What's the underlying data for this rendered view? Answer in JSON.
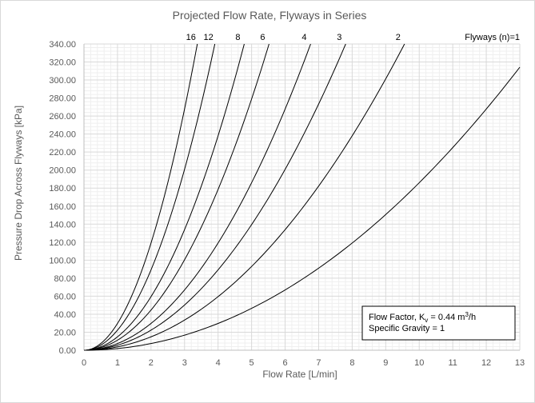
{
  "chart_data": {
    "type": "line",
    "title": "Projected Flow Rate, Flyways in Series",
    "xlabel": "Flow Rate [L/min]",
    "ylabel": "Pressure Drop Across Flyways [kPa]",
    "xlim": [
      0,
      13
    ],
    "ylim": [
      0,
      340
    ],
    "x_ticks": [
      "0",
      "1",
      "2",
      "3",
      "4",
      "5",
      "6",
      "7",
      "8",
      "9",
      "10",
      "11",
      "12",
      "13"
    ],
    "y_ticks": [
      "0.00",
      "20.00",
      "40.00",
      "60.00",
      "80.00",
      "100.00",
      "120.00",
      "140.00",
      "160.00",
      "180.00",
      "200.00",
      "220.00",
      "240.00",
      "260.00",
      "280.00",
      "300.00",
      "320.00",
      "340.00"
    ],
    "grid": true,
    "flow_factor_kv": 0.44,
    "specific_gravity": 1,
    "series": [
      {
        "name": "Flyways (n)=1",
        "n": 1
      },
      {
        "name": "2",
        "n": 2
      },
      {
        "name": "3",
        "n": 3
      },
      {
        "name": "4",
        "n": 4
      },
      {
        "name": "6",
        "n": 6
      },
      {
        "name": "8",
        "n": 8
      },
      {
        "name": "12",
        "n": 12
      },
      {
        "name": "16",
        "n": 16
      }
    ]
  },
  "info_box": {
    "line1_prefix": "Flow Factor, K",
    "line1_sub": "v",
    "line1_value": " = 0.44 m",
    "line1_sup": "3",
    "line1_unit": "/h",
    "line2": "Specific Gravity  = 1"
  },
  "colors": {
    "series": "#000000",
    "grid_major": "#d9d9d9",
    "grid_minor": "#efefef",
    "text": "#595959"
  }
}
